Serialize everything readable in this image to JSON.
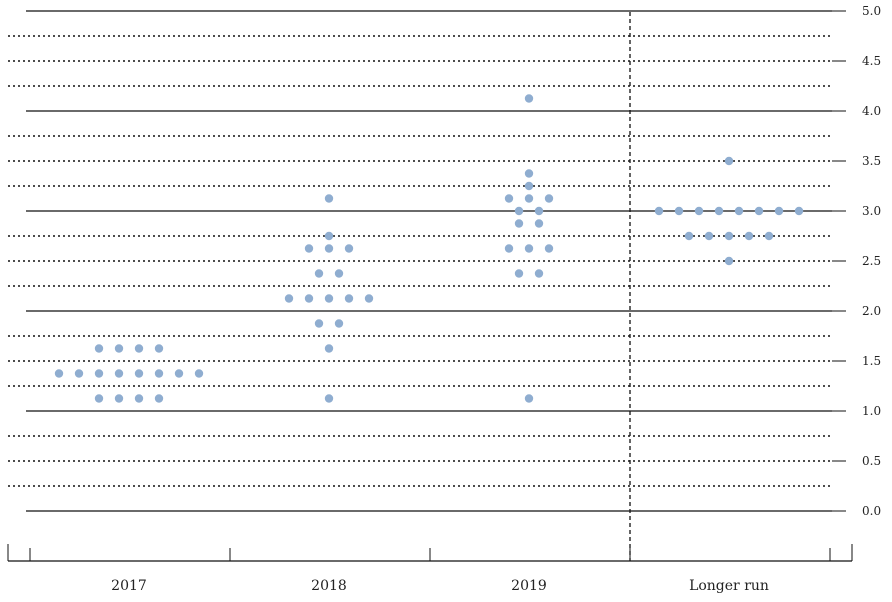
{
  "chart_data": {
    "type": "scatter",
    "subtype": "dot-plot",
    "title": "",
    "xlabel": "",
    "ylabel": "",
    "categories": [
      "2017",
      "2018",
      "2019",
      "Longer run"
    ],
    "ylim": [
      0,
      5
    ],
    "yticks": [
      "0.0",
      "0.5",
      "1.0",
      "1.5",
      "2.0",
      "2.5",
      "3.0",
      "3.5",
      "4.0",
      "4.5",
      "5.0"
    ],
    "ytick_values": [
      0,
      0.5,
      1,
      1.5,
      2,
      2.5,
      3,
      3.5,
      4,
      4.5,
      5
    ],
    "grid": {
      "solid_lines_at": [
        0,
        1,
        2,
        3,
        4,
        5
      ],
      "dotted_lines_at": [
        0.25,
        0.5,
        0.75,
        1.25,
        1.5,
        1.75,
        2.25,
        2.5,
        2.75,
        3.25,
        3.5,
        3.75,
        4.25,
        4.5,
        4.75
      ]
    },
    "divider_before": "Longer run",
    "point_color": "#8fadd0",
    "groups": [
      {
        "category": "2017",
        "levels": [
          {
            "y": 1.125,
            "count": 4
          },
          {
            "y": 1.375,
            "count": 8
          },
          {
            "y": 1.625,
            "count": 4
          }
        ]
      },
      {
        "category": "2018",
        "levels": [
          {
            "y": 1.125,
            "count": 1
          },
          {
            "y": 1.625,
            "count": 1
          },
          {
            "y": 1.875,
            "count": 2
          },
          {
            "y": 2.125,
            "count": 5
          },
          {
            "y": 2.375,
            "count": 2
          },
          {
            "y": 2.625,
            "count": 3
          },
          {
            "y": 2.75,
            "count": 1
          },
          {
            "y": 3.125,
            "count": 1
          }
        ]
      },
      {
        "category": "2019",
        "levels": [
          {
            "y": 1.125,
            "count": 1
          },
          {
            "y": 2.375,
            "count": 2
          },
          {
            "y": 2.625,
            "count": 3
          },
          {
            "y": 2.875,
            "count": 2
          },
          {
            "y": 3.0,
            "count": 2
          },
          {
            "y": 3.125,
            "count": 3
          },
          {
            "y": 3.25,
            "count": 1
          },
          {
            "y": 3.375,
            "count": 1
          },
          {
            "y": 4.125,
            "count": 1
          }
        ]
      },
      {
        "category": "Longer run",
        "levels": [
          {
            "y": 2.5,
            "count": 1
          },
          {
            "y": 2.75,
            "count": 5
          },
          {
            "y": 3.0,
            "count": 8
          },
          {
            "y": 3.5,
            "count": 1
          }
        ]
      }
    ]
  }
}
